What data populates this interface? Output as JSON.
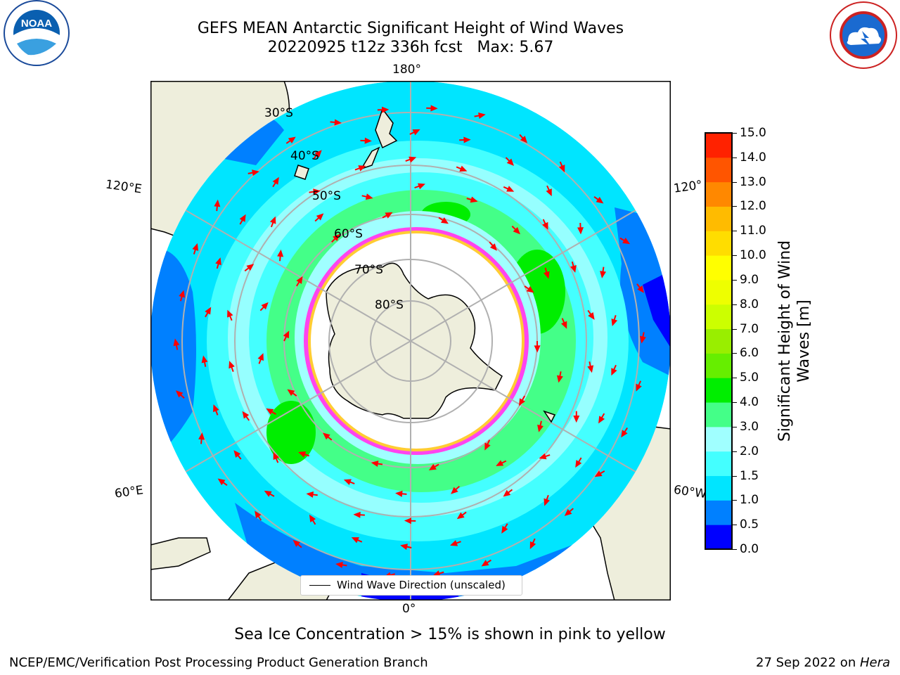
{
  "title": {
    "line1": "GEFS MEAN Antarctic Significant Height of Wind Waves",
    "line2": "20220925 t12z 336h fcst   Max: 5.67"
  },
  "logos": {
    "left": {
      "text": "NOAA",
      "ring_text": "NATIONAL OCEANIC AND ATMOSPHERIC ADMINISTRATION · U.S. DEPARTMENT OF COMMERCE"
    },
    "right": {
      "ring_text": "NATIONAL WEATHER SERVICE"
    }
  },
  "map": {
    "projection": "south polar stereographic",
    "longitude_labels": {
      "top": "180°",
      "bottom": "0°",
      "upper_left": "120°E",
      "lower_left": "60°E",
      "upper_right": "120°",
      "lower_right": "60°W"
    },
    "latitude_labels": [
      "30°S",
      "40°S",
      "50°S",
      "60°S",
      "70°S",
      "80°S"
    ],
    "legend": "Wind Wave Direction (unscaled)",
    "colors": {
      "land": "#eeeedc",
      "sea_ice_pink": "#ff44ee",
      "sea_ice_yellow": "#ffcc33",
      "arrows": "#ff0000",
      "grid": "#b0b0b0"
    }
  },
  "colorbar": {
    "label": "Significant Height of Wind Waves [m]",
    "label_lines": [
      "Significant Height of Wind",
      "Waves [m]"
    ],
    "ticks": [
      "15.0",
      "14.0",
      "13.0",
      "12.0",
      "11.0",
      "10.0",
      "9.0",
      "8.0",
      "7.0",
      "6.0",
      "5.0",
      "4.0",
      "3.0",
      "2.0",
      "1.5",
      "1.0",
      "0.5",
      "0.0"
    ],
    "colors_bottom_to_top": [
      "#0000ff",
      "#0080ff",
      "#00e5ff",
      "#44ffff",
      "#a0ffff",
      "#44ff88",
      "#00ee00",
      "#66ee00",
      "#99ee00",
      "#ccff00",
      "#eeff00",
      "#ffff00",
      "#ffdd00",
      "#ffbb00",
      "#ff8800",
      "#ff5500",
      "#ff2200"
    ]
  },
  "caption": "Sea Ice Concentration > 15% is shown in pink to yellow",
  "footer": {
    "left": "NCEP/EMC/Verification Post Processing Product Generation Branch",
    "right_date": "27 Sep 2022 on ",
    "right_host": "Hera"
  }
}
